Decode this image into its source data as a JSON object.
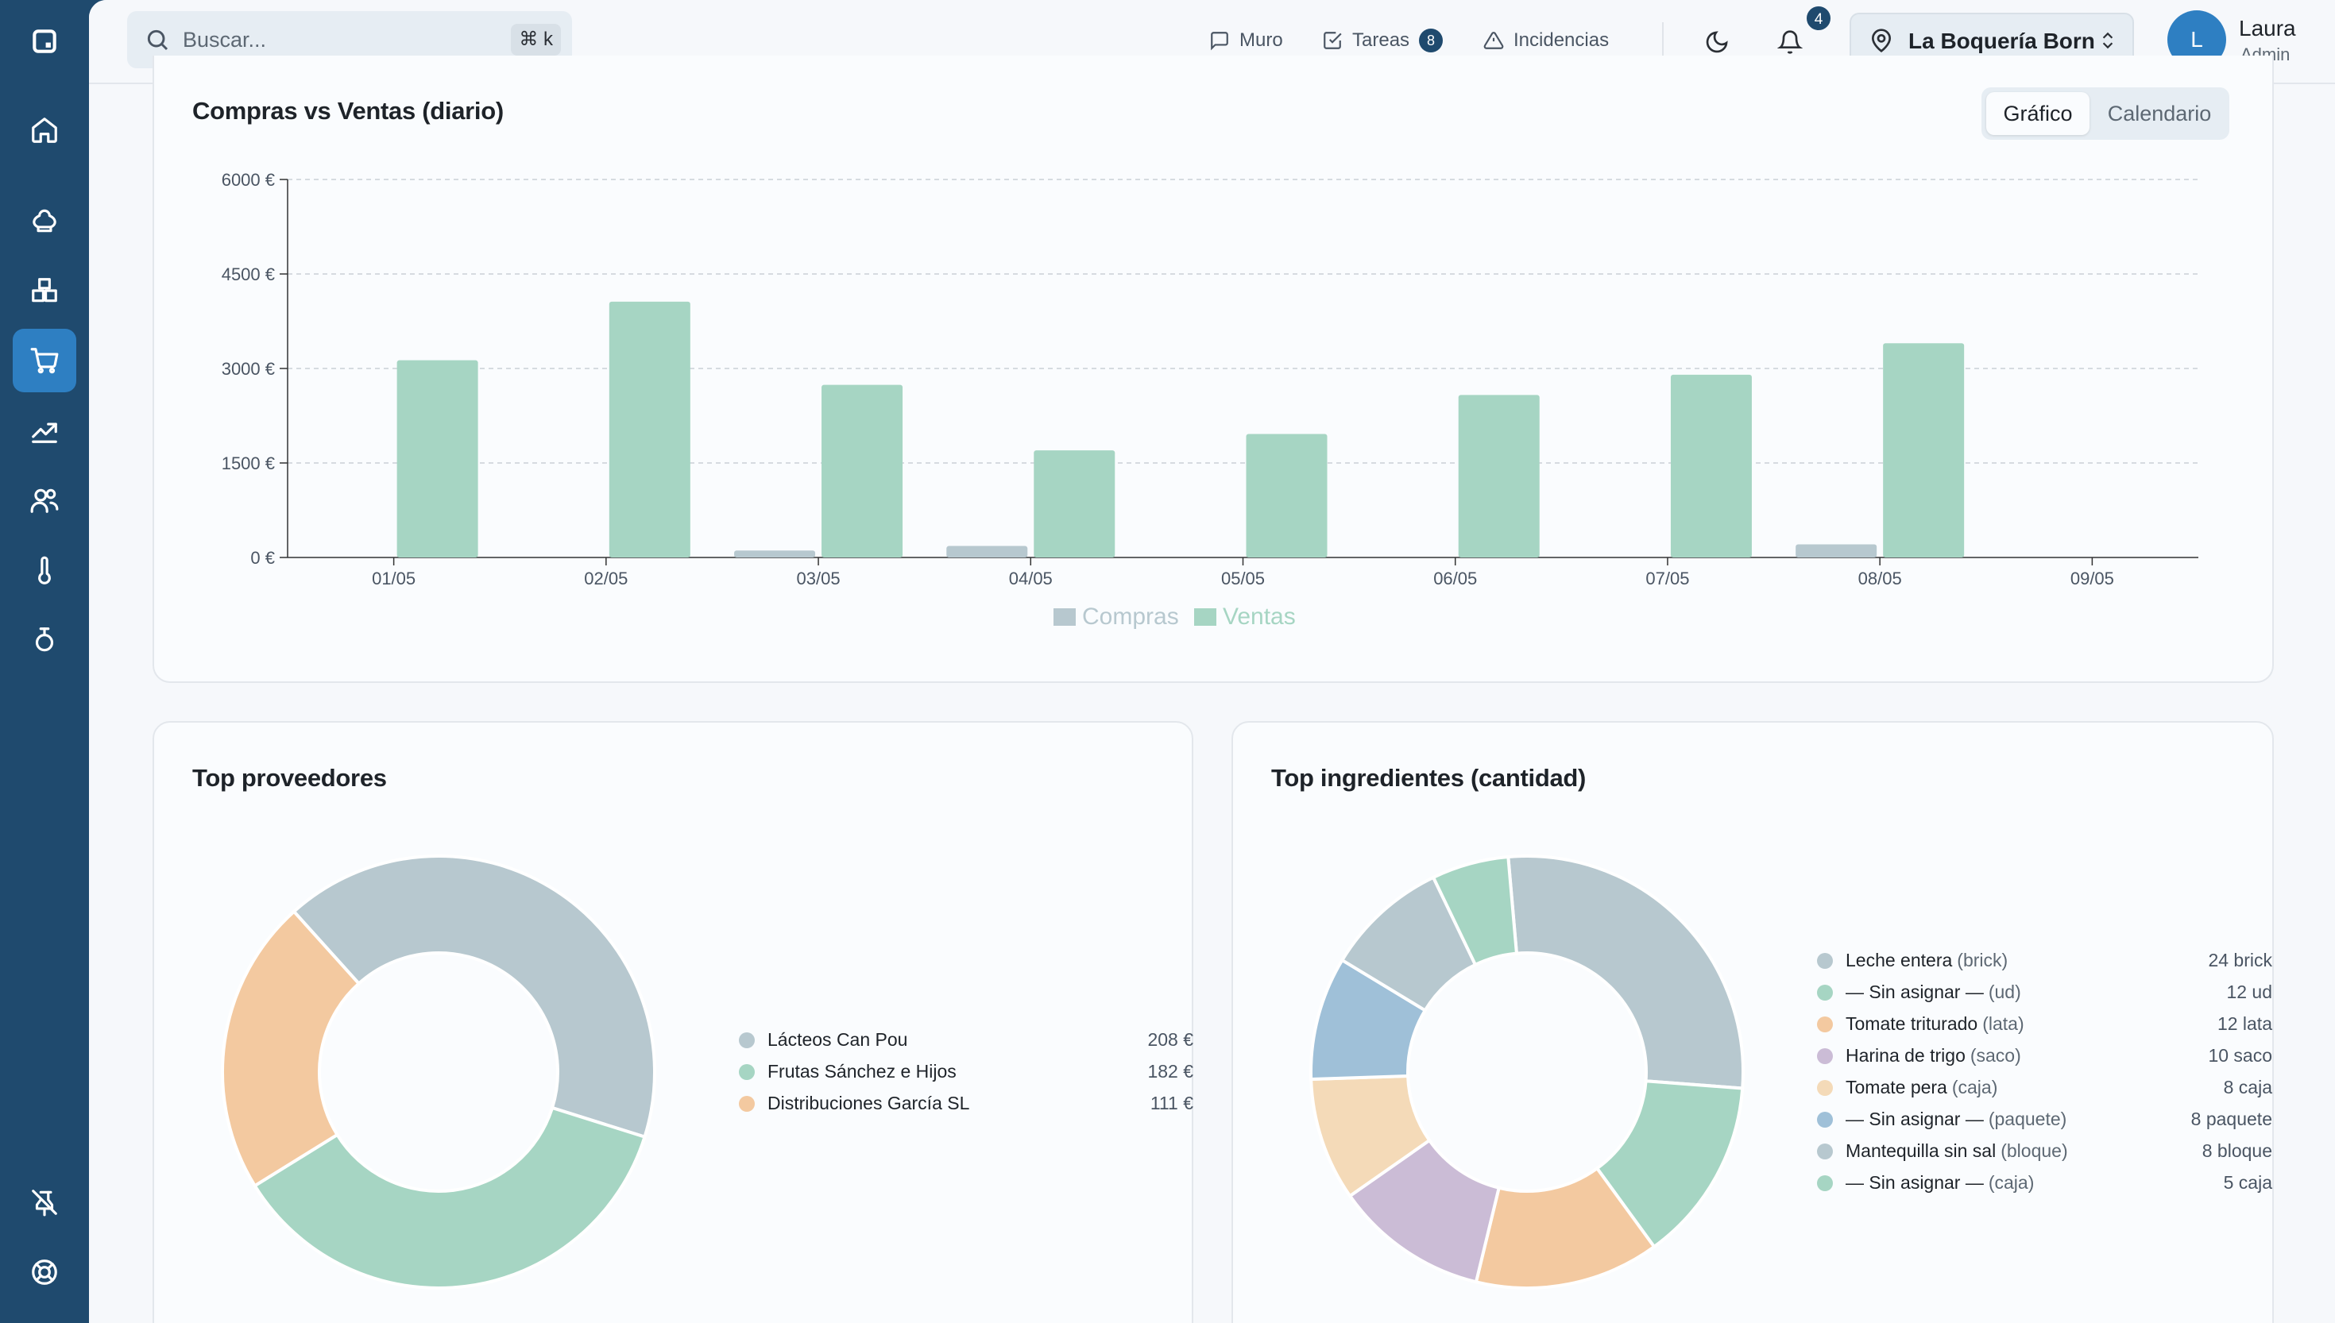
{
  "header": {
    "search_placeholder": "Buscar...",
    "search_shortcut": "⌘ k",
    "nav": [
      {
        "label": "Muro",
        "icon": "message-square-icon"
      },
      {
        "label": "Tareas",
        "icon": "check-square-icon",
        "badge": "8"
      },
      {
        "label": "Incidencias",
        "icon": "alert-triangle-icon"
      }
    ],
    "notifications_count": "4",
    "location": "La Boquería Born",
    "user": {
      "initial": "L",
      "name": "Laura",
      "role": "Admin"
    }
  },
  "sidebar": {
    "items": [
      {
        "name": "home-icon",
        "active": false
      },
      {
        "name": "chef-hat-icon",
        "active": false
      },
      {
        "name": "boxes-icon",
        "active": false
      },
      {
        "name": "cart-icon",
        "active": true
      },
      {
        "name": "trending-up-icon",
        "active": false
      },
      {
        "name": "users-icon",
        "active": false
      },
      {
        "name": "thermometer-icon",
        "active": false
      },
      {
        "name": "timer-icon",
        "active": false
      }
    ],
    "bottom": [
      {
        "name": "pin-off-icon"
      },
      {
        "name": "life-buoy-icon"
      }
    ]
  },
  "compras_card": {
    "title": "Compras vs Ventas (diario)",
    "view_toggle": [
      "Gráfico",
      "Calendario"
    ],
    "active_view": "Gráfico"
  },
  "proveedores_card": {
    "title": "Top proveedores",
    "items": [
      {
        "name": "Lácteos Can Pou",
        "value": "208 €",
        "color": "#b7c8cf"
      },
      {
        "name": "Frutas Sánchez e Hijos",
        "value": "182 €",
        "color": "#a6d5c3"
      },
      {
        "name": "Distribuciones García SL",
        "value": "111 €",
        "color": "#f3c9a0"
      }
    ]
  },
  "ingredientes_card": {
    "title": "Top ingredientes (cantidad)",
    "items": [
      {
        "name": "Leche entera",
        "unit": "(brick)",
        "value": "24 brick",
        "color": "#b7c8cf"
      },
      {
        "name": "— Sin asignar —",
        "unit": "(ud)",
        "value": "12 ud",
        "color": "#a6d5c3"
      },
      {
        "name": "Tomate triturado",
        "unit": "(lata)",
        "value": "12 lata",
        "color": "#f3c9a0"
      },
      {
        "name": "Harina de trigo",
        "unit": "(saco)",
        "value": "10 saco",
        "color": "#cbbcd6"
      },
      {
        "name": "Tomate pera",
        "unit": "(caja)",
        "value": "8 caja",
        "color": "#f4dab8"
      },
      {
        "name": "— Sin asignar —",
        "unit": "(paquete)",
        "value": "8 paquete",
        "color": "#9fc0d8"
      },
      {
        "name": "Mantequilla sin sal",
        "unit": "(bloque)",
        "value": "8 bloque",
        "color": "#b7c8cf"
      },
      {
        "name": "— Sin asignar —",
        "unit": "(caja)",
        "value": "5 caja",
        "color": "#a6d5c3"
      }
    ]
  },
  "chart_data": [
    {
      "type": "bar",
      "title": "Compras vs Ventas (diario)",
      "categories": [
        "01/05",
        "02/05",
        "03/05",
        "04/05",
        "05/05",
        "06/05",
        "07/05",
        "08/05",
        "09/05"
      ],
      "series": [
        {
          "name": "Compras",
          "color": "#b7c8cf",
          "values": [
            0,
            0,
            111,
            182,
            0,
            0,
            0,
            208,
            0
          ]
        },
        {
          "name": "Ventas",
          "color": "#a6d5c3",
          "values": [
            3130,
            4060,
            2740,
            1700,
            1960,
            2580,
            2900,
            3400,
            0
          ]
        }
      ],
      "ylim": [
        0,
        6000
      ],
      "yticks": [
        "0 €",
        "1500 €",
        "3000 €",
        "4500 €",
        "6000 €"
      ],
      "ytick_values": [
        0,
        1500,
        3000,
        4500,
        6000
      ],
      "grid": true,
      "legend": "bottom"
    },
    {
      "type": "pie",
      "title": "Top proveedores",
      "labels": [
        "Lácteos Can Pou",
        "Frutas Sánchez e Hijos",
        "Distribuciones García SL"
      ],
      "values": [
        208,
        182,
        111
      ],
      "colors": [
        "#b7c8cf",
        "#a6d5c3",
        "#f3c9a0"
      ]
    },
    {
      "type": "pie",
      "title": "Top ingredientes (cantidad)",
      "labels": [
        "Leche entera",
        "— Sin asignar —",
        "Tomate triturado",
        "Harina de trigo",
        "Tomate pera",
        "— Sin asignar —",
        "Mantequilla sin sal",
        "— Sin asignar —"
      ],
      "values": [
        24,
        12,
        12,
        10,
        8,
        8,
        8,
        5
      ],
      "colors": [
        "#b7c8cf",
        "#a6d5c3",
        "#f3c9a0",
        "#cbbcd6",
        "#f4dab8",
        "#9fc0d8",
        "#b7c8cf",
        "#a6d5c3"
      ]
    }
  ]
}
